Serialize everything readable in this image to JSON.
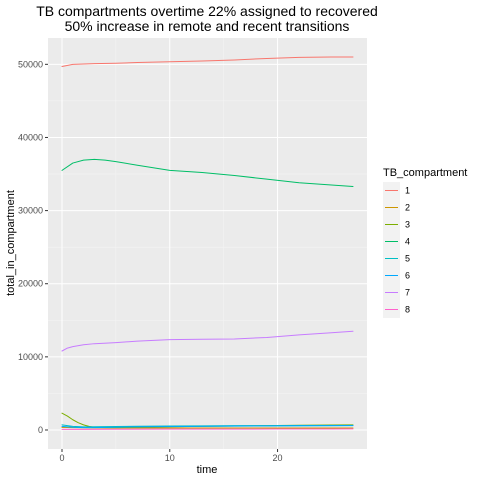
{
  "chart_data": {
    "type": "line",
    "title_line1": "TB compartments overtime 22% assigned to recovered",
    "title_line2": "50% increase in remote and recent transitions",
    "xlabel": "time",
    "ylabel": "total_in_compartment",
    "xlim": [
      -1.3,
      28.3
    ],
    "ylim": [
      -2600,
      53600
    ],
    "x_ticks": [
      0,
      10,
      20
    ],
    "x_tick_labels": [
      "0",
      "10",
      "20"
    ],
    "y_ticks": [
      0,
      10000,
      20000,
      30000,
      40000,
      50000
    ],
    "y_tick_labels": [
      "0",
      "10000",
      "20000",
      "30000",
      "40000",
      "50000"
    ],
    "grid": true,
    "legend_position": "right",
    "legend_title": "TB_compartment",
    "series": [
      {
        "name": "1",
        "color": "#F8766D",
        "x": [
          0,
          1,
          2,
          3,
          5,
          7,
          10,
          13,
          16,
          19,
          22,
          25,
          27
        ],
        "y": [
          49700,
          50000,
          50050,
          50100,
          50150,
          50250,
          50350,
          50450,
          50600,
          50800,
          50950,
          51000,
          51000
        ]
      },
      {
        "name": "2",
        "color": "#CD9600",
        "x": [
          0,
          1,
          2,
          3,
          5,
          7,
          10,
          13,
          16,
          19,
          22,
          25,
          27
        ],
        "y": [
          350,
          320,
          300,
          290,
          280,
          280,
          280,
          280,
          280,
          280,
          280,
          280,
          280
        ]
      },
      {
        "name": "3",
        "color": "#7CAE00",
        "x": [
          0,
          0.5,
          1,
          1.5,
          2,
          2.5,
          3,
          4,
          5,
          7,
          10,
          13,
          16,
          19,
          22,
          25,
          27
        ],
        "y": [
          2300,
          1900,
          1400,
          1000,
          700,
          500,
          380,
          330,
          330,
          380,
          450,
          500,
          550,
          600,
          650,
          680,
          700
        ]
      },
      {
        "name": "4",
        "color": "#00BE67",
        "x": [
          0,
          1,
          2,
          3,
          4,
          5,
          7,
          10,
          13,
          16,
          19,
          22,
          25,
          27
        ],
        "y": [
          35500,
          36500,
          36900,
          37000,
          36900,
          36700,
          36200,
          35500,
          35200,
          34800,
          34300,
          33800,
          33500,
          33300
        ]
      },
      {
        "name": "5",
        "color": "#00BFC4",
        "x": [
          0,
          1,
          2,
          3,
          5,
          7,
          10,
          13,
          16,
          19,
          22,
          25,
          27
        ],
        "y": [
          700,
          500,
          430,
          450,
          480,
          510,
          550,
          570,
          590,
          600,
          610,
          615,
          620
        ]
      },
      {
        "name": "6",
        "color": "#00A9FF",
        "x": [
          0,
          1,
          2,
          3,
          5,
          7,
          10,
          13,
          16,
          19,
          22,
          25,
          27
        ],
        "y": [
          500,
          380,
          320,
          330,
          380,
          420,
          460,
          500,
          530,
          550,
          570,
          580,
          590
        ]
      },
      {
        "name": "7",
        "color": "#C77CFF",
        "x": [
          0,
          0.5,
          1,
          2,
          3,
          5,
          7,
          10,
          13,
          16,
          19,
          22,
          25,
          27
        ],
        "y": [
          10800,
          11200,
          11400,
          11650,
          11800,
          11950,
          12150,
          12350,
          12400,
          12450,
          12650,
          13000,
          13300,
          13500
        ]
      },
      {
        "name": "8",
        "color": "#FF61CC",
        "x": [
          0,
          2,
          5,
          10,
          15,
          20,
          25,
          27
        ],
        "y": [
          80,
          90,
          100,
          110,
          120,
          130,
          140,
          150
        ]
      }
    ],
    "colors": {
      "panel_background": "#EBEBEB",
      "grid_major": "#FFFFFF",
      "grid_minor": "#F5F5F5",
      "tick_mark": "#333333",
      "legend_key_background": "#F2F2F2"
    }
  }
}
